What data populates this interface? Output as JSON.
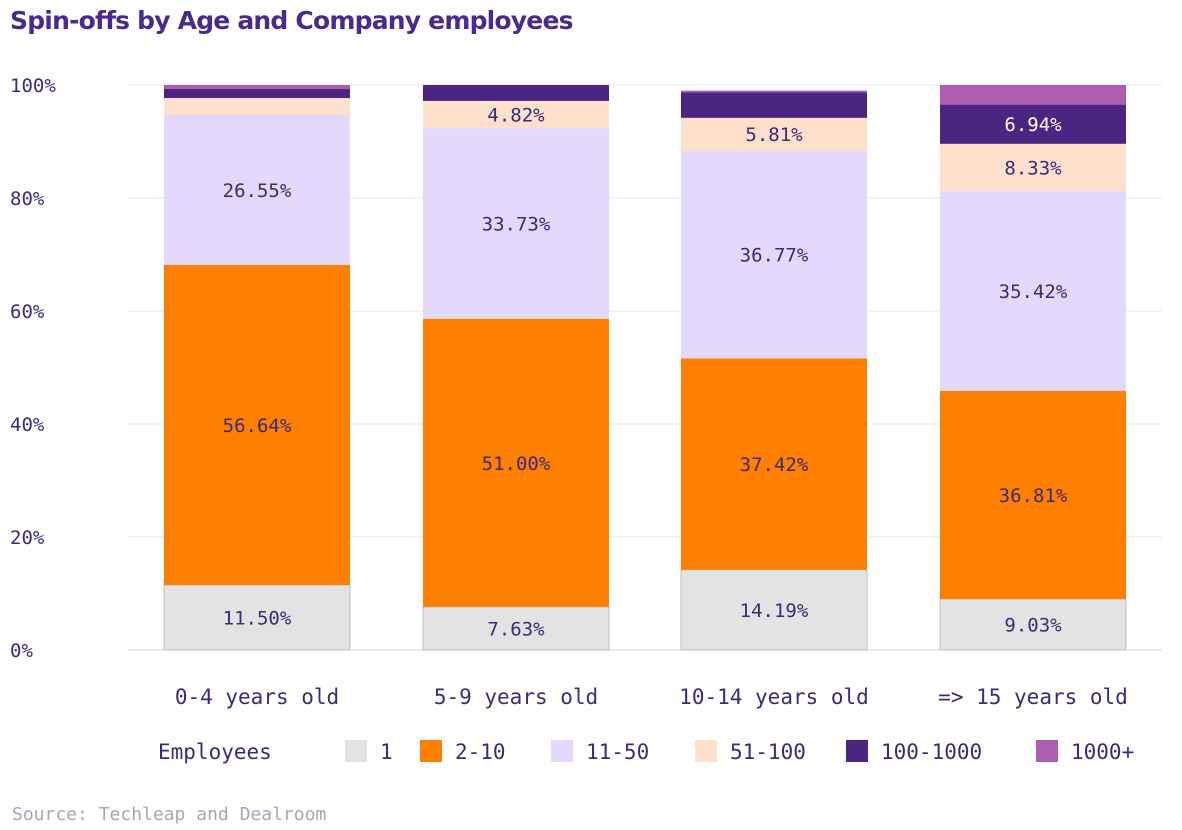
{
  "chart_data": {
    "type": "bar",
    "stacked": true,
    "title": "Spin-offs by Age and Company employees",
    "categories": [
      "0-4 years old",
      "5-9 years old",
      "10-14 years old",
      "=> 15 years old"
    ],
    "series": [
      {
        "name": "1",
        "color": "#e3e3e3",
        "values": [
          11.5,
          7.63,
          14.19,
          9.03
        ],
        "labels": [
          "11.50%",
          "7.63%",
          "14.19%",
          "9.03%"
        ]
      },
      {
        "name": "2-10",
        "color": "#ff7f00",
        "values": [
          56.64,
          51.0,
          37.42,
          36.81
        ],
        "labels": [
          "56.64%",
          "51.00%",
          "37.42%",
          "36.81%"
        ]
      },
      {
        "name": "11-50",
        "color": "#e4d8fd",
        "values": [
          26.55,
          33.73,
          36.77,
          35.42
        ],
        "labels": [
          "26.55%",
          "33.73%",
          "36.77%",
          "35.42%"
        ]
      },
      {
        "name": "51-100",
        "color": "#ffe0cc",
        "values": [
          3.0,
          4.82,
          5.81,
          8.33
        ],
        "labels": [
          "",
          "4.82%",
          "5.81%",
          "8.33%"
        ]
      },
      {
        "name": "100-1000",
        "color": "#4b2582",
        "values": [
          1.6,
          2.82,
          4.5,
          6.94
        ],
        "labels": [
          "",
          "",
          "",
          "6.94%"
        ]
      },
      {
        "name": "1000+",
        "color": "#ad5eb1",
        "values": [
          0.71,
          0.0,
          0.31,
          3.47
        ],
        "labels": [
          "",
          "",
          "",
          ""
        ]
      }
    ],
    "y_ticks": [
      "0%",
      "20%",
      "40%",
      "60%",
      "80%",
      "100%"
    ],
    "ylim": [
      0,
      100
    ],
    "grid": true,
    "legend_title": "Employees",
    "legend_position": "bottom",
    "source": "Source: Techleap and Dealroom"
  }
}
